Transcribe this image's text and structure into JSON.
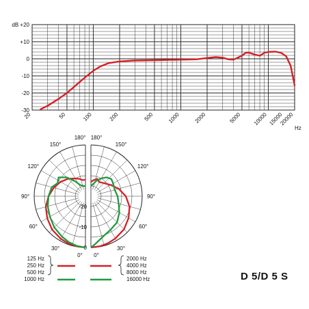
{
  "model": "D 5/D 5 S",
  "colors": {
    "red": "#d42027",
    "green": "#1f9a3f",
    "grid": "#222222"
  },
  "chart_data": [
    {
      "type": "line",
      "title": "",
      "xlabel": "Hz",
      "ylabel": "dB",
      "xscale": "log",
      "xlim": [
        20,
        20000
      ],
      "ylim": [
        -30,
        20
      ],
      "x_tick_labels": [
        "20",
        "50",
        "100",
        "200",
        "500",
        "1000",
        "2000",
        "5000",
        "10000",
        "15000",
        "20000"
      ],
      "x_tick_values": [
        20,
        50,
        100,
        200,
        500,
        1000,
        2000,
        5000,
        10000,
        15000,
        20000
      ],
      "y_tick_labels": [
        "dB +20",
        "+10",
        "0",
        "-10",
        "-20",
        "-30"
      ],
      "y_tick_values": [
        20,
        10,
        0,
        -10,
        -20,
        -30
      ],
      "series": [
        {
          "color": "#d42027",
          "x": [
            25,
            30,
            40,
            50,
            60,
            70,
            80,
            100,
            120,
            150,
            200,
            300,
            500,
            1000,
            1500,
            2000,
            2500,
            3000,
            3500,
            4000,
            5000,
            5500,
            6000,
            7000,
            8000,
            9000,
            10000,
            12000,
            14000,
            16000,
            18000,
            20000
          ],
          "y": [
            -29.5,
            -27.5,
            -23.5,
            -20,
            -16.5,
            -13.5,
            -11,
            -7,
            -4.5,
            -2.5,
            -1.5,
            -1,
            -0.8,
            -0.5,
            -0.3,
            0.5,
            1,
            0.7,
            -0.3,
            -0.5,
            1.8,
            3.5,
            3.6,
            2.5,
            1.8,
            3.5,
            4,
            4.2,
            3.5,
            1.5,
            -4,
            -15.5
          ]
        }
      ]
    },
    {
      "type": "polar",
      "title": "",
      "radial_labels": [
        "-20",
        "-10",
        "0"
      ],
      "radial_values": [
        -20,
        -10,
        0
      ],
      "angle_labels_left": [
        "180°",
        "150°",
        "120°",
        "90°",
        "60°",
        "30°",
        "0°"
      ],
      "angle_labels_right": [
        "180°",
        "150°",
        "120°",
        "90°",
        "60°",
        "30°",
        "0°"
      ],
      "series": [
        {
          "side": "left",
          "color": "#d42027",
          "name": "125 Hz / 250 Hz / 500 Hz",
          "angles": [
            0,
            10,
            20,
            30,
            45,
            60,
            75,
            90,
            105,
            120,
            135,
            150,
            160,
            170,
            180
          ],
          "db": [
            0,
            -0.2,
            -0.5,
            -1,
            -2,
            -3.5,
            -5,
            -7,
            -9,
            -11,
            -13,
            -15,
            -16,
            -17,
            -17
          ]
        },
        {
          "side": "left",
          "color": "#1f9a3f",
          "name": "1000 Hz",
          "angles": [
            0,
            10,
            20,
            30,
            45,
            60,
            75,
            90,
            105,
            115,
            125,
            135,
            145,
            155,
            170,
            180
          ],
          "db": [
            0,
            -0.4,
            -1.2,
            -2.2,
            -3.5,
            -5,
            -6,
            -7,
            -8,
            -10,
            -9,
            -12,
            -16,
            -19,
            -20,
            -20
          ]
        },
        {
          "side": "right",
          "color": "#d42027",
          "name": "2000 Hz / 4000 Hz / 8000 Hz",
          "angles": [
            0,
            10,
            20,
            30,
            45,
            60,
            75,
            90,
            105,
            120,
            135,
            150,
            160,
            170,
            180
          ],
          "db": [
            0,
            -0.2,
            -0.6,
            -1.2,
            -2.2,
            -3.8,
            -5.5,
            -8,
            -11,
            -14,
            -16,
            -17,
            -16,
            -17,
            -18
          ]
        },
        {
          "side": "right",
          "color": "#1f9a3f",
          "name": "16000 Hz",
          "angles": [
            0,
            5,
            10,
            20,
            30,
            45,
            60,
            75,
            90,
            105,
            120,
            130,
            140,
            150,
            160,
            170,
            180
          ],
          "db": [
            0,
            -1.5,
            -3,
            -5,
            -6,
            -7,
            -9,
            -11,
            -12,
            -13,
            -12.5,
            -12,
            -13,
            -15,
            -17,
            -19,
            -20
          ]
        }
      ]
    }
  ],
  "legend": {
    "left": {
      "labels": [
        "125 Hz",
        "250 Hz",
        "500 Hz",
        "1000 Hz"
      ]
    },
    "right": {
      "labels": [
        "2000 Hz",
        "4000 Hz",
        "8000 Hz",
        "16000 Hz"
      ]
    }
  }
}
